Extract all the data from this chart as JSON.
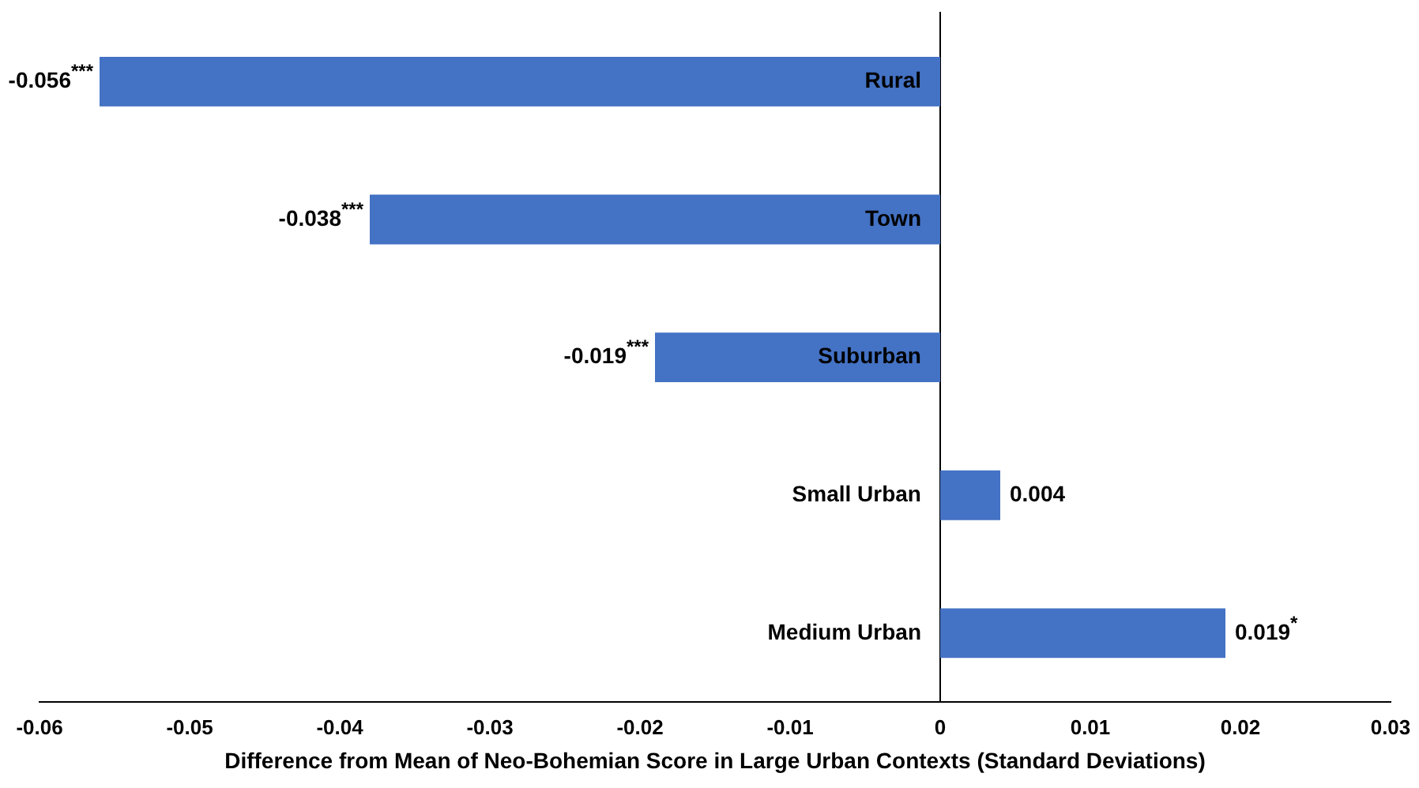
{
  "chart_data": {
    "type": "bar",
    "orientation": "horizontal",
    "xlabel": "Difference from Mean of Neo-Bohemian Score in Large Urban Contexts (Standard Deviations)",
    "categories": [
      "Rural",
      "Town",
      "Suburban",
      "Small Urban",
      "Medium Urban"
    ],
    "values": [
      -0.056,
      -0.038,
      -0.019,
      0.004,
      0.019
    ],
    "value_labels": [
      "-0.056$^{***}$",
      "-0.038$^{***}$",
      "-0.019$^{***}$",
      "0.004",
      "0.019$^{*}$"
    ],
    "color": "#4472c4",
    "xlim": [
      -0.06,
      0.03
    ],
    "xticks": [
      -0.06,
      -0.05,
      -0.04,
      -0.03,
      -0.02,
      -0.01,
      0,
      0.01,
      0.02,
      0.03
    ],
    "grid": false
  }
}
